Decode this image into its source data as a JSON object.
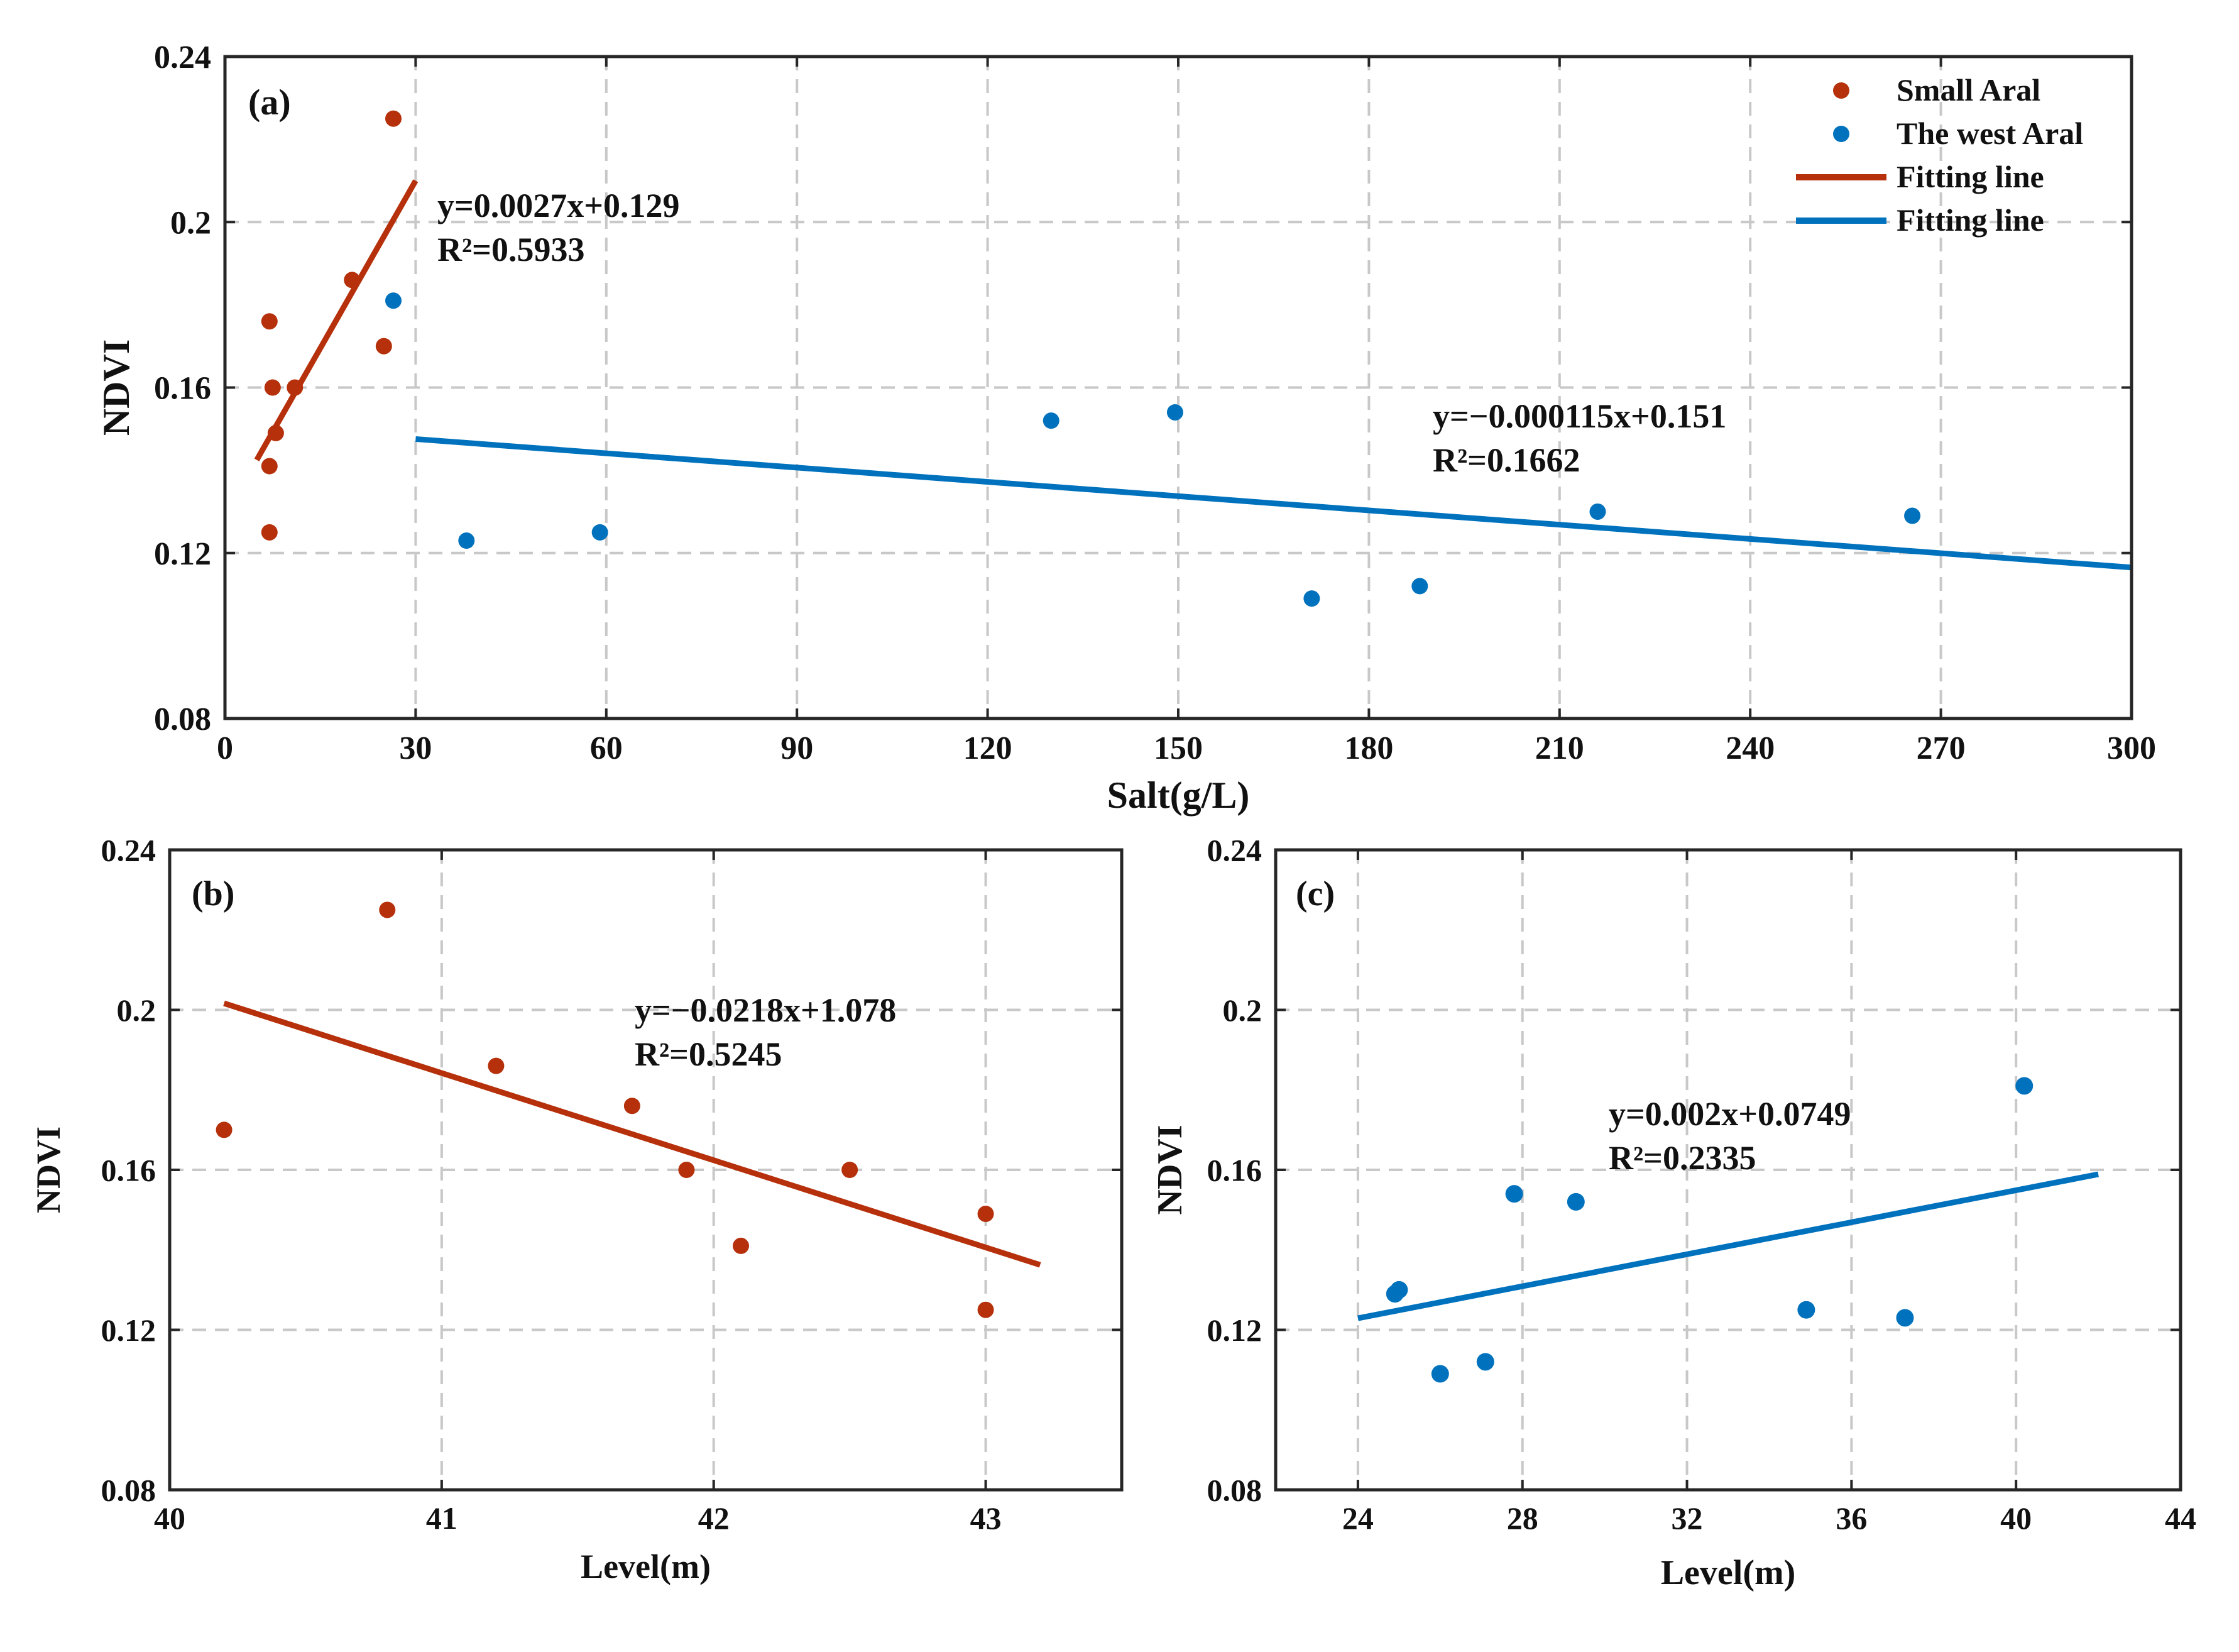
{
  "colors": {
    "small_aral": "#b5300b",
    "west_aral": "#0072bd",
    "grid": "#c8c8c8",
    "frame": "#262626"
  },
  "legend": {
    "entries": [
      {
        "label": "Small Aral",
        "kind": "marker",
        "series": "small_aral"
      },
      {
        "label": "The west Aral",
        "kind": "marker",
        "series": "west_aral"
      },
      {
        "label": "Fitting line",
        "kind": "line",
        "series": "small_aral"
      },
      {
        "label": "Fitting line",
        "kind": "line",
        "series": "west_aral"
      }
    ]
  },
  "chart_data": [
    {
      "id": "a",
      "panel_label": "(a)",
      "type": "scatter",
      "xlabel": "Salt(g/L)",
      "ylabel": "NDVI",
      "xlim": [
        0,
        300
      ],
      "ylim": [
        0.08,
        0.24
      ],
      "xticks": [
        0,
        30,
        60,
        90,
        120,
        150,
        180,
        210,
        240,
        270,
        300
      ],
      "yticks": [
        0.08,
        0.12,
        0.16,
        0.2,
        0.24
      ],
      "xtick_labels": [
        "0",
        "30",
        "60",
        "90",
        "120",
        "150",
        "180",
        "210",
        "240",
        "270",
        "300"
      ],
      "ytick_labels": [
        "0.08",
        "0.12",
        "0.16",
        "0.2",
        "0.24"
      ],
      "grid": true,
      "legend_position": "top-right",
      "series": [
        {
          "name": "Small Aral",
          "color_key": "small_aral",
          "points": [
            [
              7,
              0.125
            ],
            [
              7,
              0.176
            ],
            [
              7,
              0.141
            ],
            [
              7.5,
              0.16
            ],
            [
              8,
              0.149
            ],
            [
              11,
              0.16
            ],
            [
              20,
              0.186
            ],
            [
              25,
              0.17
            ],
            [
              26.5,
              0.225
            ]
          ],
          "fit": {
            "x_range": [
              5,
              30
            ],
            "slope": 0.0027,
            "intercept": 0.129
          },
          "equation": "y=0.0027x+0.129",
          "r2": "R²=0.5933"
        },
        {
          "name": "The west Aral",
          "color_key": "west_aral",
          "points": [
            [
              26.5,
              0.181
            ],
            [
              38,
              0.123
            ],
            [
              59,
              0.125
            ],
            [
              130,
              0.152
            ],
            [
              149.5,
              0.154
            ],
            [
              171,
              0.109
            ],
            [
              188,
              0.112
            ],
            [
              216,
              0.13
            ],
            [
              265.5,
              0.129
            ]
          ],
          "fit": {
            "x_range": [
              30,
              300
            ],
            "slope": -0.000115,
            "intercept": 0.151
          },
          "equation": "y=−0.000115x+0.151",
          "r2": "R²=0.1662"
        }
      ]
    },
    {
      "id": "b",
      "panel_label": "(b)",
      "type": "scatter",
      "xlabel": "Level(m)",
      "ylabel": "NDVI",
      "xlim": [
        40,
        43.5
      ],
      "ylim": [
        0.08,
        0.24
      ],
      "xticks": [
        40,
        41,
        42,
        43
      ],
      "yticks": [
        0.08,
        0.12,
        0.16,
        0.2,
        0.24
      ],
      "xtick_labels": [
        "40",
        "41",
        "42",
        "43"
      ],
      "ytick_labels": [
        "0.08",
        "0.12",
        "0.16",
        "0.2",
        "0.24"
      ],
      "grid": true,
      "series": [
        {
          "name": "Small Aral",
          "color_key": "small_aral",
          "points": [
            [
              40.2,
              0.17
            ],
            [
              40.8,
              0.225
            ],
            [
              41.2,
              0.186
            ],
            [
              41.7,
              0.176
            ],
            [
              41.9,
              0.16
            ],
            [
              42.1,
              0.141
            ],
            [
              42.5,
              0.16
            ],
            [
              43,
              0.149
            ],
            [
              43,
              0.125
            ]
          ],
          "fit": {
            "x_range": [
              40.2,
              43.2
            ],
            "slope": -0.0218,
            "intercept": 1.078
          },
          "equation": "y=−0.0218x+1.078",
          "r2": "R²=0.5245"
        }
      ]
    },
    {
      "id": "c",
      "panel_label": "(c)",
      "type": "scatter",
      "xlabel": "Level(m)",
      "ylabel": "NDVI",
      "xlim": [
        22,
        44
      ],
      "ylim": [
        0.08,
        0.24
      ],
      "xticks": [
        24,
        28,
        32,
        36,
        40,
        44
      ],
      "yticks": [
        0.08,
        0.12,
        0.16,
        0.2,
        0.24
      ],
      "xtick_labels": [
        "24",
        "28",
        "32",
        "36",
        "40",
        "44"
      ],
      "ytick_labels": [
        "0.08",
        "0.12",
        "0.16",
        "0.2",
        "0.24"
      ],
      "grid": true,
      "series": [
        {
          "name": "The west Aral",
          "color_key": "west_aral",
          "points": [
            [
              24.9,
              0.129
            ],
            [
              25,
              0.13
            ],
            [
              26,
              0.109
            ],
            [
              27.1,
              0.112
            ],
            [
              27.8,
              0.154
            ],
            [
              29.3,
              0.152
            ],
            [
              34.9,
              0.125
            ],
            [
              37.3,
              0.123
            ],
            [
              40.2,
              0.181
            ]
          ],
          "fit": {
            "x_range": [
              24,
              42
            ],
            "slope": 0.002,
            "intercept": 0.0749
          },
          "equation": "y=0.002x+0.0749",
          "r2": "R²=0.2335"
        }
      ]
    }
  ]
}
